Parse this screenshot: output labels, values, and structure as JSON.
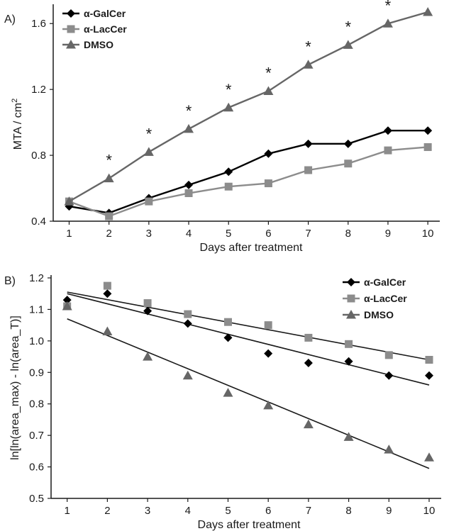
{
  "colors": {
    "galcer": "#000000",
    "laccer": "#8c8c8c",
    "dmso": "#666666",
    "fit_line": "#1a1a1a",
    "axis": "#1a1a1a"
  },
  "chart_data": [
    {
      "type": "line",
      "panel_label": "A)",
      "xlabel": "Days after treatment",
      "ylabel": "MTA / cm",
      "ylabel_superscript": "2",
      "x": [
        1,
        2,
        3,
        4,
        5,
        6,
        7,
        8,
        9,
        10
      ],
      "xlim": [
        0.6,
        10.3
      ],
      "ylim": [
        0.4,
        1.7
      ],
      "xticks": [
        "1",
        "2",
        "3",
        "4",
        "5",
        "6",
        "7",
        "8",
        "9",
        "10"
      ],
      "yticks": [
        "0.4",
        "0.8",
        "1.2",
        "1.6"
      ],
      "ytick_values": [
        0.4,
        0.8,
        1.2,
        1.6
      ],
      "legend_position": "top-left",
      "grid": false,
      "series": [
        {
          "name": "α-GalCer",
          "marker": "diamond",
          "color_key": "galcer",
          "values": [
            0.49,
            0.45,
            0.54,
            0.62,
            0.7,
            0.81,
            0.87,
            0.87,
            0.95,
            0.95
          ]
        },
        {
          "name": "α-LacCer",
          "marker": "square",
          "color_key": "laccer",
          "values": [
            0.52,
            0.43,
            0.52,
            0.57,
            0.61,
            0.63,
            0.71,
            0.75,
            0.83,
            0.85
          ]
        },
        {
          "name": "DMSO",
          "marker": "triangle",
          "color_key": "dmso",
          "values": [
            0.52,
            0.66,
            0.82,
            0.96,
            1.09,
            1.19,
            1.35,
            1.47,
            1.6,
            1.67
          ]
        }
      ],
      "annotations": {
        "symbol": "*",
        "x": [
          2,
          3,
          4,
          5,
          6,
          7,
          8,
          9
        ],
        "y": [
          0.78,
          0.94,
          1.08,
          1.21,
          1.31,
          1.47,
          1.59,
          1.72
        ]
      }
    },
    {
      "type": "scatter",
      "panel_label": "B)",
      "xlabel": "Days after treatment",
      "ylabel": "ln[ln(area_max) - ln(area_T)]",
      "x": [
        1,
        2,
        3,
        4,
        5,
        6,
        7,
        8,
        9,
        10
      ],
      "xlim": [
        0.6,
        10.3
      ],
      "ylim": [
        0.5,
        1.2
      ],
      "xticks": [
        "1",
        "2",
        "3",
        "4",
        "5",
        "6",
        "7",
        "8",
        "9",
        "10"
      ],
      "yticks": [
        "0.5",
        "0.6",
        "0.7",
        "0.8",
        "0.9",
        "1.0",
        "1.1",
        "1.2"
      ],
      "ytick_values": [
        0.5,
        0.6,
        0.7,
        0.8,
        0.9,
        1.0,
        1.1,
        1.2
      ],
      "legend_position": "top-right",
      "grid": false,
      "series": [
        {
          "name": "α-GalCer",
          "marker": "diamond",
          "color_key": "galcer",
          "values": [
            1.13,
            1.15,
            1.095,
            1.055,
            1.01,
            0.96,
            0.93,
            0.935,
            0.89,
            0.89
          ],
          "fit": [
            1.15,
            0.86
          ]
        },
        {
          "name": "α-LacCer",
          "marker": "square",
          "color_key": "laccer",
          "values": [
            1.11,
            1.175,
            1.12,
            1.085,
            1.06,
            1.05,
            1.01,
            0.99,
            0.955,
            0.94
          ],
          "fit": [
            1.155,
            0.94
          ]
        },
        {
          "name": "DMSO",
          "marker": "triangle",
          "color_key": "dmso",
          "values": [
            1.11,
            1.03,
            0.95,
            0.89,
            0.835,
            0.795,
            0.735,
            0.695,
            0.655,
            0.63
          ],
          "fit": [
            1.07,
            0.595
          ]
        }
      ]
    }
  ]
}
